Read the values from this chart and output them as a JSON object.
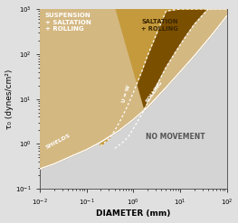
{
  "xlim": [
    0.01,
    100
  ],
  "ylim": [
    0.1,
    1000
  ],
  "xlabel": "DIAMETER (mm)",
  "ylabel": "τ₀ (dynes/cm²)",
  "plot_bg_color": "#d4d4d4",
  "fig_bg_color": "#e0e0e0",
  "suspension_color": "#7b4f00",
  "saltation_color": "#c49a3c",
  "rolling_color": "#d4b882",
  "no_movement_color": "#d4d4d4",
  "shields_x": [
    0.01,
    0.02,
    0.05,
    0.1,
    0.2,
    0.5,
    1.0,
    2.0,
    5.0,
    10.0,
    20.0,
    50.0,
    100.0
  ],
  "shields_y": [
    0.28,
    0.36,
    0.55,
    0.75,
    1.1,
    2.0,
    3.5,
    6.5,
    18.0,
    40.0,
    90.0,
    280.0,
    700.0
  ],
  "uw_x": [
    0.2,
    0.3,
    0.4,
    0.5,
    0.7,
    1.0,
    1.5,
    2.0,
    3.0,
    5.0,
    10.0,
    20.0,
    50.0,
    100.0
  ],
  "uw_y": [
    0.9,
    1.3,
    2.0,
    3.0,
    6.0,
    14.0,
    40.0,
    90.0,
    250.0,
    900.0,
    1000.0,
    1000.0,
    1000.0,
    1000.0
  ],
  "rolling_x": [
    0.4,
    0.6,
    0.8,
    1.0,
    1.5,
    2.0,
    3.0,
    5.0,
    8.0,
    12.0,
    20.0,
    40.0,
    70.0,
    100.0
  ],
  "rolling_y": [
    0.8,
    1.1,
    1.5,
    2.2,
    4.5,
    8.0,
    18.0,
    50.0,
    110.0,
    210.0,
    450.0,
    1000.0,
    1000.0,
    1000.0
  ],
  "label_suspension": "SUSPENSION\n+ SALTATION\n+ ROLLING",
  "label_saltation": "SALTATION\n+ ROLLING",
  "label_no_movement": "NO MOVEMENT",
  "label_shields": "SHIELDS",
  "label_uw": "U = W",
  "label_rolling": "ROLLING"
}
